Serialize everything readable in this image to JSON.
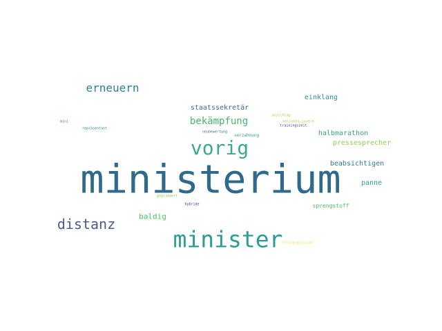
{
  "words": [
    {
      "text": "ministerium",
      "color": "#2f6a8c"
    },
    {
      "text": "minister",
      "color": "#2a9d8f"
    },
    {
      "text": "vorig",
      "color": "#3aaa8a"
    },
    {
      "text": "distanz",
      "color": "#4a5a90"
    },
    {
      "text": "erneuern",
      "color": "#2f7f94"
    },
    {
      "text": "bekämpfung",
      "color": "#44b86a"
    },
    {
      "text": "staatssekretär",
      "color": "#3d6b8f"
    },
    {
      "text": "einklang",
      "color": "#2e8f95"
    },
    {
      "text": "halbmarathon",
      "color": "#35a08e"
    },
    {
      "text": "pressesprecher",
      "color": "#8fd04a"
    },
    {
      "text": "beabsichtigen",
      "color": "#31788f"
    },
    {
      "text": "panne",
      "color": "#2f9a95"
    },
    {
      "text": "baldig",
      "color": "#4cbf5e"
    },
    {
      "text": "sprengstoff",
      "color": "#49bc6a"
    },
    {
      "text": "ausschlag",
      "color": "#9fd640"
    },
    {
      "text": "besinnen innere",
      "color": "#a8db36"
    },
    {
      "text": "trainingszeit",
      "color": "#3e4a84"
    },
    {
      "text": "neubewertung",
      "color": "#3a6f90"
    },
    {
      "text": "verzahnung",
      "color": "#2e9890"
    },
    {
      "text": "repräsentant",
      "color": "#2e8a92"
    },
    {
      "text": "mini",
      "color": "#2d8c95"
    },
    {
      "text": "gegliedert",
      "color": "#8acb48"
    },
    {
      "text": "hybride",
      "color": "#482878"
    },
    {
      "text": "erfolgsaussicht",
      "color": "#f4e14a"
    }
  ]
}
